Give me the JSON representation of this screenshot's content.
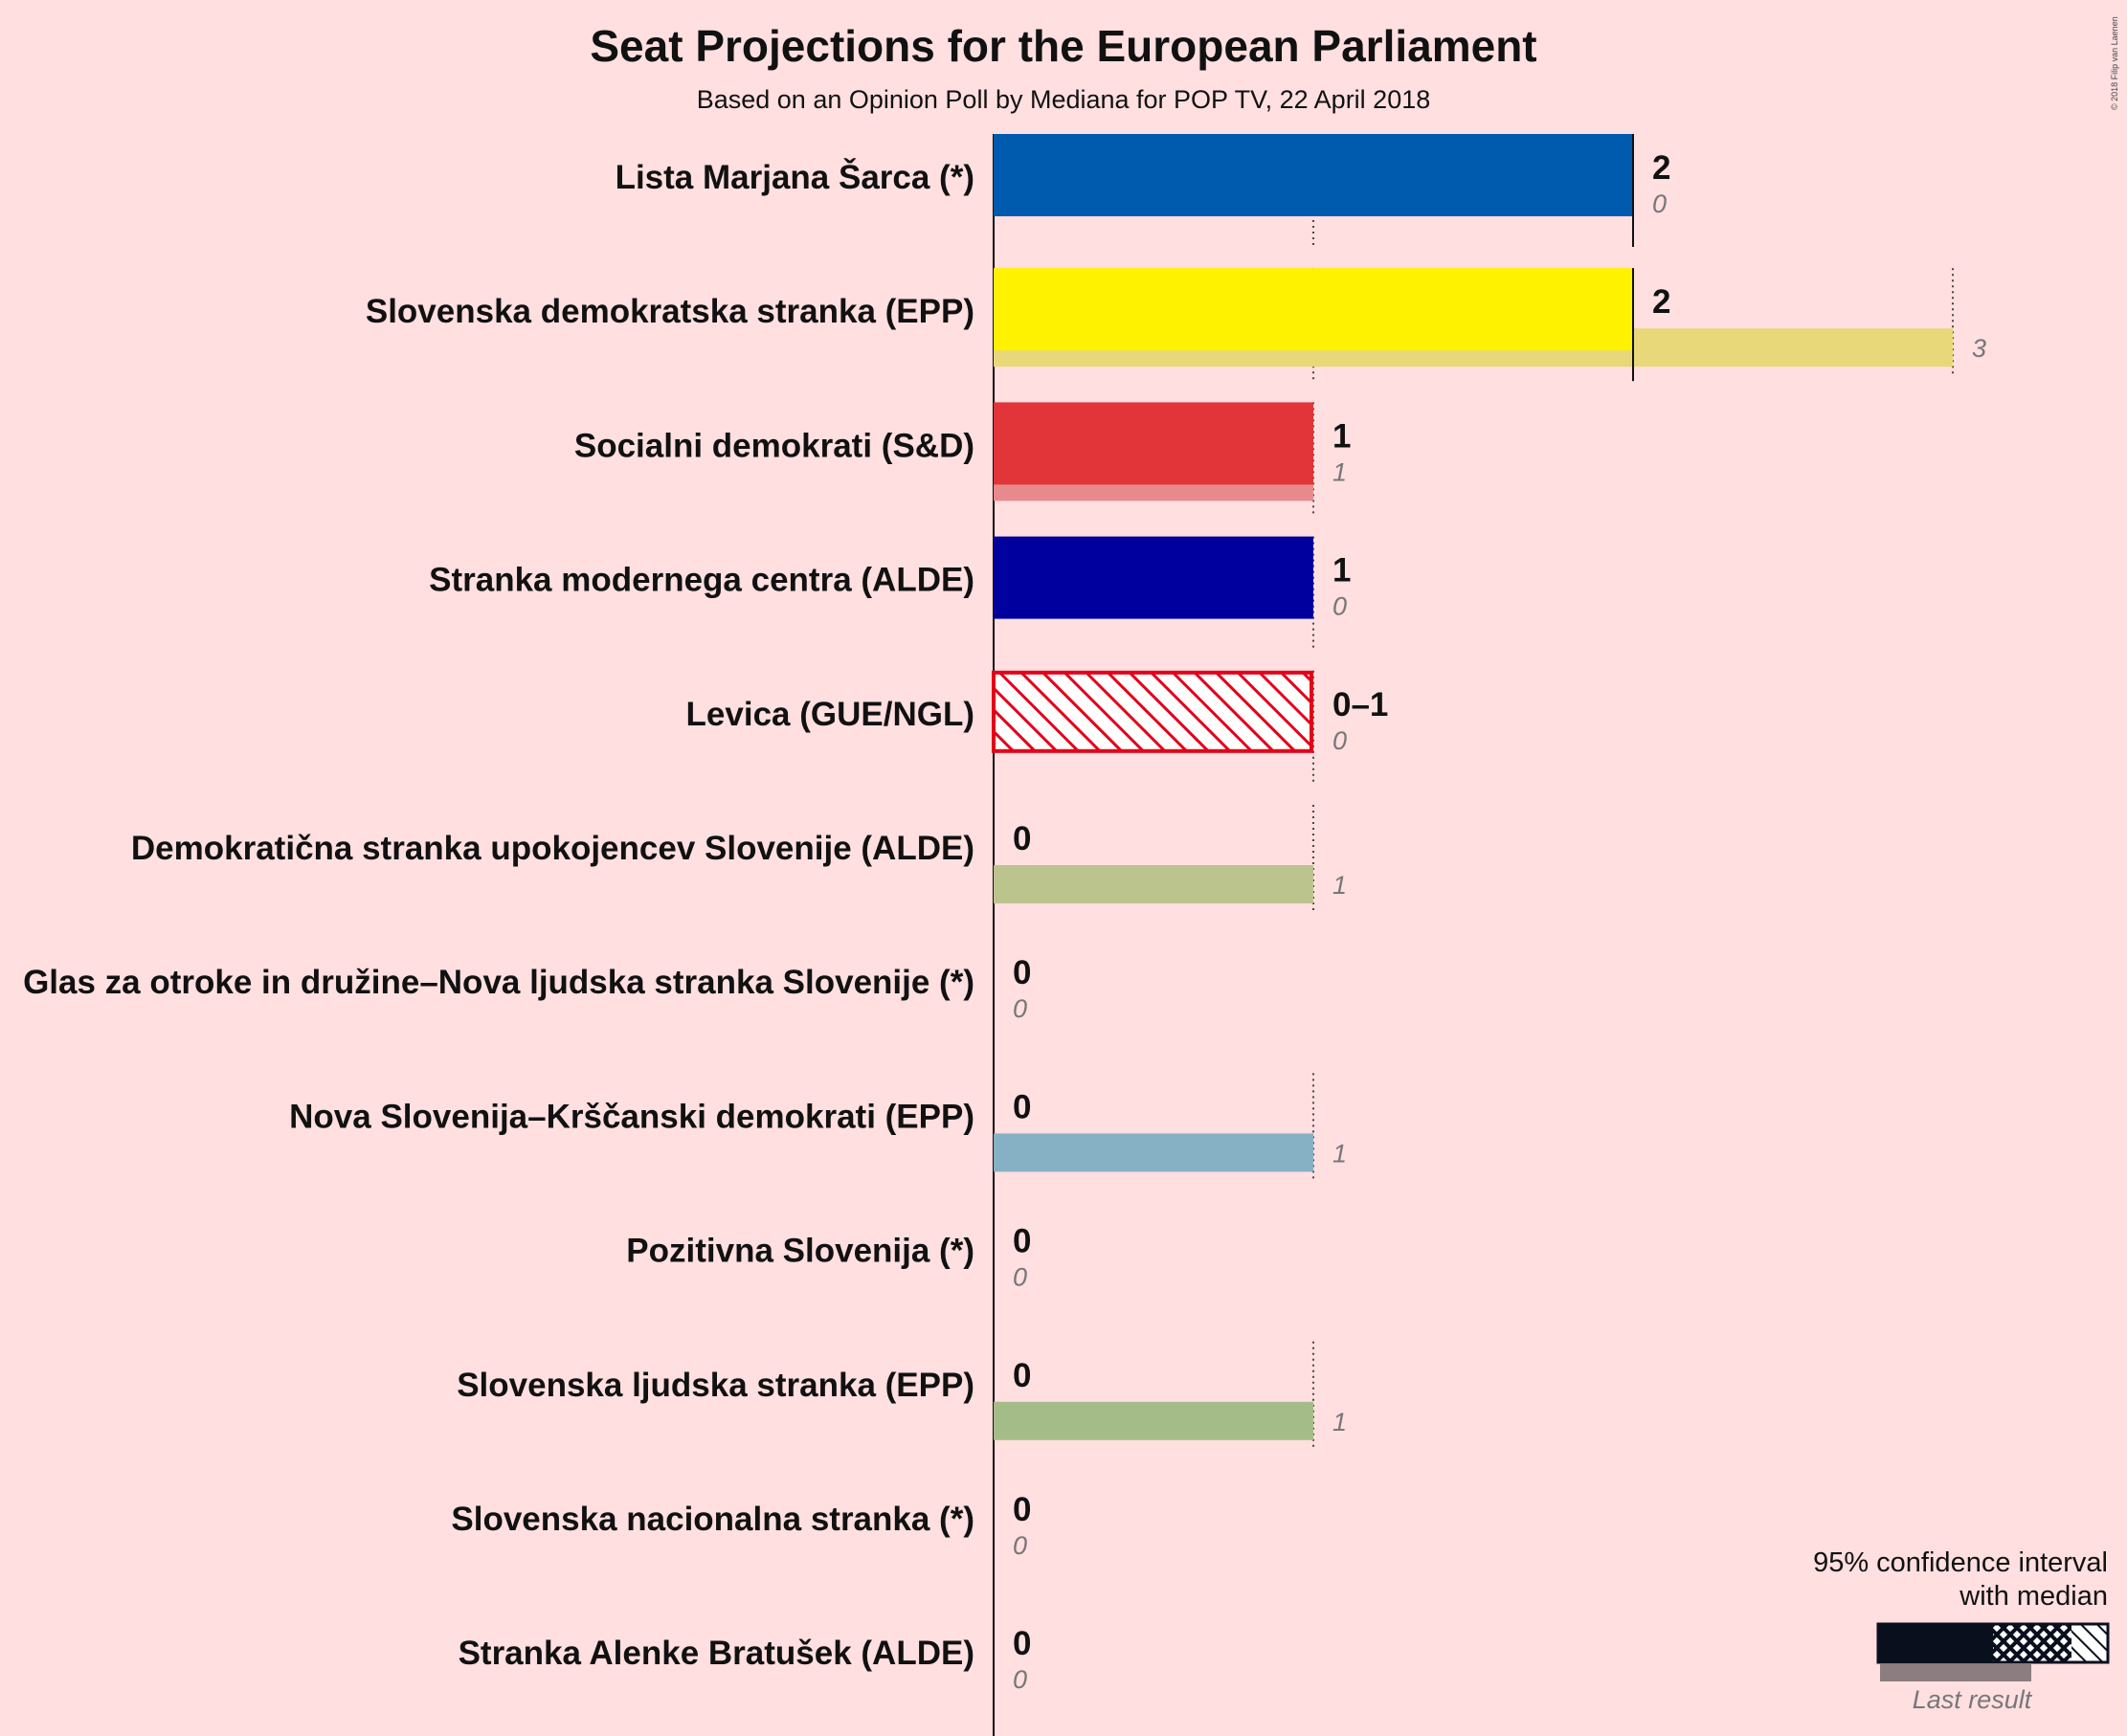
{
  "chart_data": {
    "type": "bar",
    "title": "Seat Projections for the European Parliament",
    "subtitle": "Based on an Opinion Poll by Mediana for POP TV, 22 April 2018",
    "copyright": "© 2018 Filip van Laenen",
    "xlim": [
      0,
      3
    ],
    "parties": [
      {
        "name": "Lista Marjana Šarca (*)",
        "ci_low": 2,
        "ci_high": 2,
        "median_label": "2",
        "last_result": 0,
        "color": "#005aad",
        "last_color": "#005aad",
        "hatched": false
      },
      {
        "name": "Slovenska demokratska stranka (EPP)",
        "ci_low": 2,
        "ci_high": 2,
        "median_label": "2",
        "last_result": 3,
        "color": "#fff200",
        "last_color": "#e8d87a",
        "hatched": false
      },
      {
        "name": "Socialni demokrati (S&D)",
        "ci_low": 1,
        "ci_high": 1,
        "median_label": "1",
        "last_result": 1,
        "color": "#e13539",
        "last_color": "#e88a8c",
        "hatched": false
      },
      {
        "name": "Stranka modernega centra (ALDE)",
        "ci_low": 1,
        "ci_high": 1,
        "median_label": "1",
        "last_result": 0,
        "color": "#00009e",
        "last_color": "#00009e",
        "hatched": false
      },
      {
        "name": "Levica (GUE/NGL)",
        "ci_low": 0,
        "ci_high": 1,
        "median_label": "0–1",
        "last_result": 0,
        "color": "#e3001a",
        "last_color": "#e3001a",
        "hatched": true
      },
      {
        "name": "Demokratična stranka upokojencev Slovenije (ALDE)",
        "ci_low": 0,
        "ci_high": 0,
        "median_label": "0",
        "last_result": 1,
        "color": "#8fa843",
        "last_color": "#bcc48e",
        "hatched": false
      },
      {
        "name": "Glas za otroke in družine–Nova ljudska stranka Slovenije (*)",
        "ci_low": 0,
        "ci_high": 0,
        "median_label": "0",
        "last_result": 0,
        "color": "#888888",
        "last_color": "#888888",
        "hatched": false
      },
      {
        "name": "Nova Slovenija–Krščanski demokrati (EPP)",
        "ci_low": 0,
        "ci_high": 0,
        "median_label": "0",
        "last_result": 1,
        "color": "#3a7da6",
        "last_color": "#86b0c4",
        "hatched": false
      },
      {
        "name": "Pozitivna Slovenija (*)",
        "ci_low": 0,
        "ci_high": 0,
        "median_label": "0",
        "last_result": 0,
        "color": "#888888",
        "last_color": "#888888",
        "hatched": false
      },
      {
        "name": "Slovenska ljudska stranka (EPP)",
        "ci_low": 0,
        "ci_high": 0,
        "median_label": "0",
        "last_result": 1,
        "color": "#5c9a37",
        "last_color": "#a4bd88",
        "hatched": false
      },
      {
        "name": "Slovenska nacionalna stranka (*)",
        "ci_low": 0,
        "ci_high": 0,
        "median_label": "0",
        "last_result": 0,
        "color": "#888888",
        "last_color": "#888888",
        "hatched": false
      },
      {
        "name": "Stranka Alenke Bratušek (ALDE)",
        "ci_low": 0,
        "ci_high": 0,
        "median_label": "0",
        "last_result": 0,
        "color": "#888888",
        "last_color": "#888888",
        "hatched": false
      }
    ],
    "legend": {
      "title_line1": "95% confidence interval",
      "title_line2": "with median",
      "last_result_label": "Last result",
      "placement": "bottom-right"
    }
  }
}
